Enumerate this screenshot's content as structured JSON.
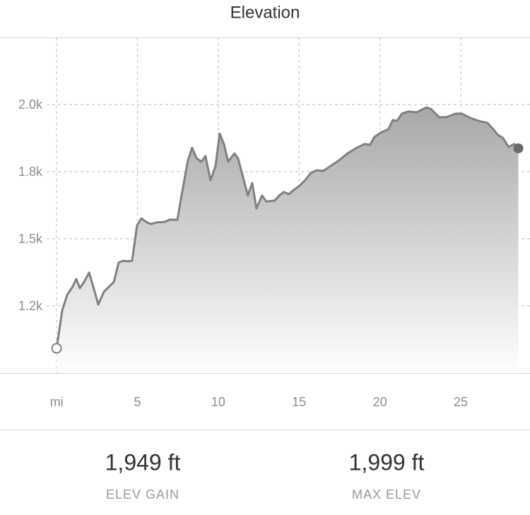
{
  "chart_data": {
    "type": "area",
    "title": "Elevation",
    "x": [
      0,
      0.35,
      0.66,
      0.96,
      1.22,
      1.44,
      1.7,
      2.01,
      2.31,
      2.58,
      2.93,
      3.28,
      3.54,
      3.84,
      4.1,
      4.37,
      4.67,
      4.98,
      5.24,
      5.59,
      5.85,
      6.2,
      6.68,
      6.99,
      7.47,
      7.77,
      8.12,
      8.38,
      8.65,
      8.95,
      9.21,
      9.52,
      9.83,
      10.09,
      10.35,
      10.61,
      11.0,
      11.22,
      11.57,
      11.83,
      12.1,
      12.36,
      12.71,
      12.97,
      13.49,
      13.8,
      14.06,
      14.37,
      14.67,
      15.02,
      15.37,
      15.72,
      16.07,
      16.51,
      16.86,
      17.47,
      17.99,
      18.56,
      19.04,
      19.39,
      19.65,
      20.09,
      20.52,
      20.79,
      21.05,
      21.35,
      21.75,
      22.27,
      22.62,
      22.88,
      23.14,
      23.67,
      24.1,
      24.67,
      25.07,
      25.59,
      26.11,
      26.64,
      26.94,
      27.29,
      27.6,
      27.95,
      28.3,
      28.56
    ],
    "series": [
      {
        "color": "#808080",
        "values": [
          1092,
          1234,
          1292,
          1318,
          1350,
          1316,
          1339,
          1374,
          1313,
          1255,
          1303,
          1324,
          1339,
          1411,
          1418,
          1416,
          1418,
          1550,
          1576,
          1561,
          1555,
          1561,
          1563,
          1571,
          1571,
          1676,
          1792,
          1839,
          1800,
          1787,
          1808,
          1718,
          1771,
          1892,
          1853,
          1787,
          1818,
          1800,
          1721,
          1661,
          1708,
          1613,
          1661,
          1639,
          1642,
          1663,
          1674,
          1666,
          1682,
          1697,
          1718,
          1745,
          1755,
          1753,
          1768,
          1792,
          1818,
          1839,
          1853,
          1850,
          1879,
          1897,
          1908,
          1942,
          1939,
          1966,
          1974,
          1971,
          1982,
          1989,
          1984,
          1953,
          1953,
          1966,
          1966,
          1950,
          1939,
          1932,
          1913,
          1887,
          1876,
          1842,
          1853,
          1837
        ]
      }
    ],
    "xlim": [
      -3.5,
      29.28
    ],
    "xticks": [
      {
        "value": 0,
        "label": "mi"
      },
      5,
      10,
      15,
      20,
      25
    ],
    "ylim": [
      1000,
      2250
    ],
    "yticks": [
      {
        "value": 1250,
        "label": "1.2k"
      },
      {
        "value": 1500,
        "label": "1.5k"
      },
      {
        "value": 1750,
        "label": "1.8k"
      },
      {
        "value": 2000,
        "label": "2.0k"
      }
    ],
    "grid": true
  },
  "stats": [
    {
      "value": "1,949 ft",
      "label": "ELEV GAIN"
    },
    {
      "value": "1,999 ft",
      "label": "MAX ELEV"
    }
  ]
}
